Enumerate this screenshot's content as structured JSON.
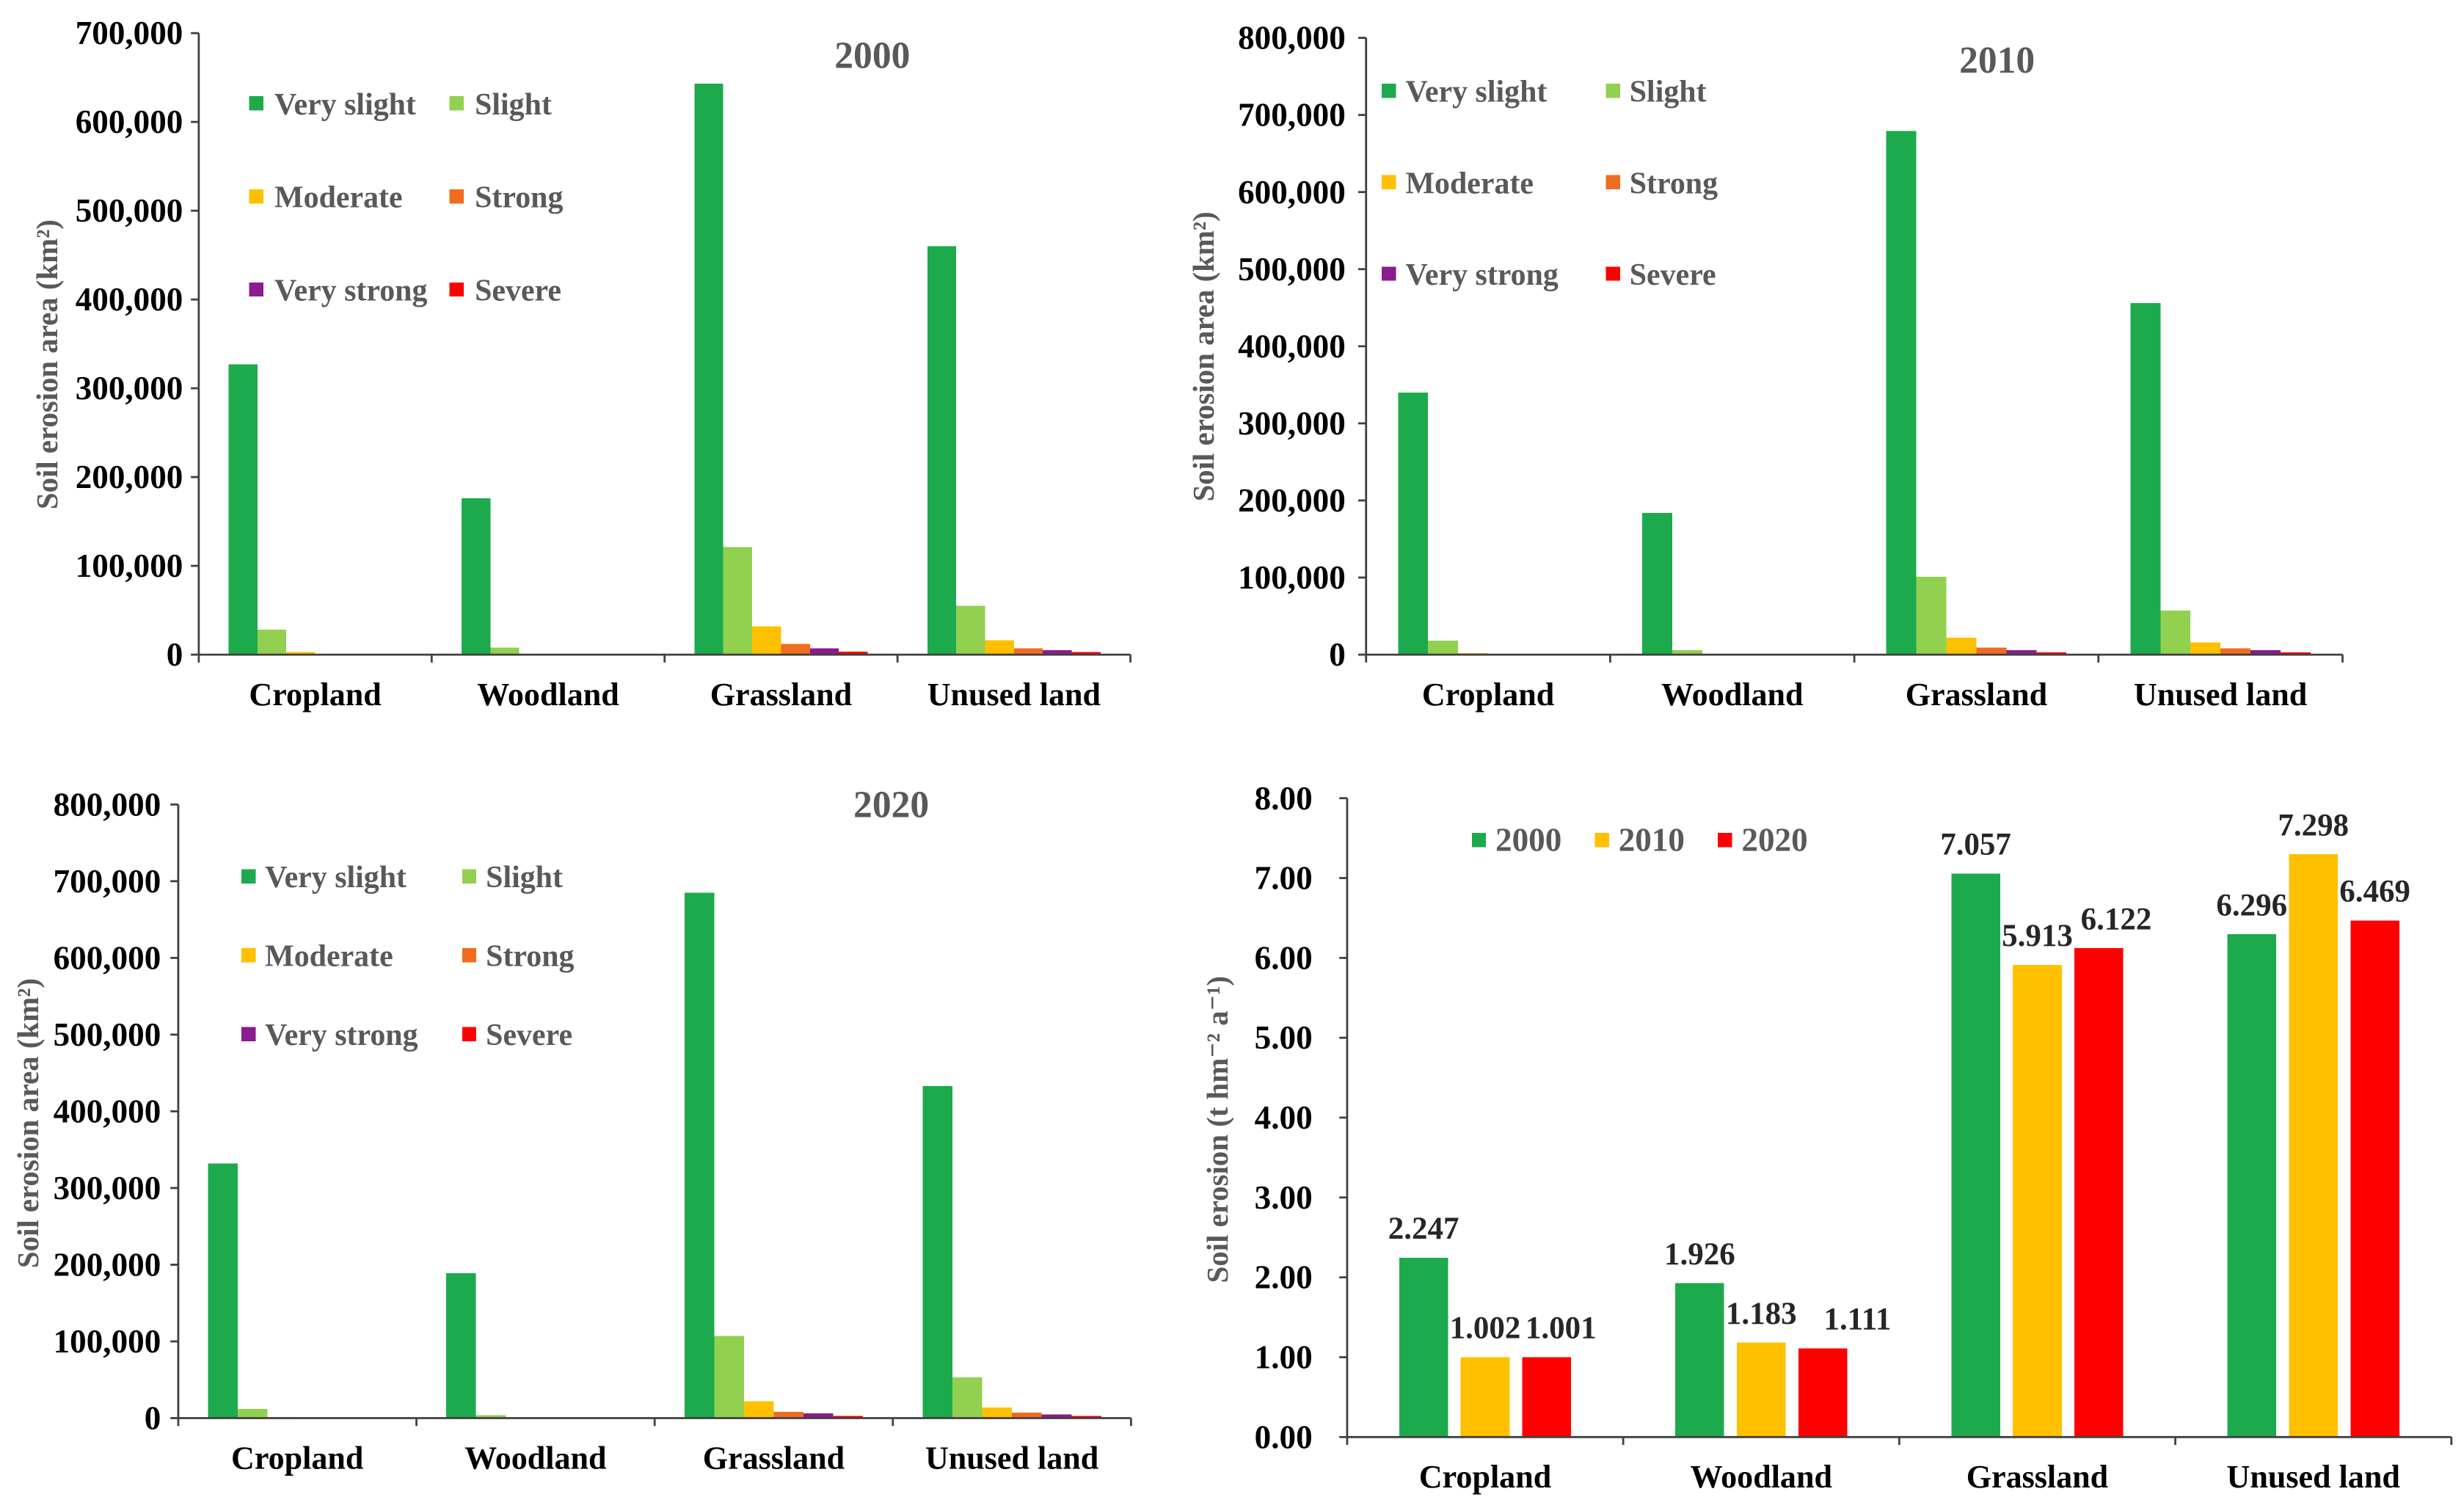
{
  "chart_data": [
    {
      "type": "bar",
      "title": "2000",
      "xlabel": "",
      "ylabel": "Soil erosion area (km²)",
      "categories": [
        "Cropland",
        "Woodland",
        "Grassland",
        "Unused land"
      ],
      "ylim": [
        0,
        700000
      ],
      "ytick_labels": [
        "0",
        "100,000",
        "200,000",
        "300,000",
        "400,000",
        "500,000",
        "600,000",
        "700,000"
      ],
      "grid": false,
      "legend_position": "top-left",
      "series": [
        {
          "name": "Very slight",
          "color": "#1daa4c",
          "values": [
            327000,
            176000,
            643000,
            460000
          ]
        },
        {
          "name": "Slight",
          "color": "#92d050",
          "values": [
            28000,
            8000,
            121000,
            55000
          ]
        },
        {
          "name": "Moderate",
          "color": "#ffc000",
          "values": [
            3000,
            1000,
            32000,
            16000
          ]
        },
        {
          "name": "Strong",
          "color": "#f06c1e",
          "values": [
            600,
            200,
            12000,
            7000
          ]
        },
        {
          "name": "Very strong",
          "color": "#8b1b8e",
          "values": [
            300,
            100,
            7000,
            5000
          ]
        },
        {
          "name": "Severe",
          "color": "#ff0000",
          "values": [
            100,
            50,
            3500,
            3000
          ]
        }
      ]
    },
    {
      "type": "bar",
      "title": "2010",
      "xlabel": "",
      "ylabel": "Soil erosion area (km²)",
      "categories": [
        "Cropland",
        "Woodland",
        "Grassland",
        "Unused land"
      ],
      "ylim": [
        0,
        800000
      ],
      "ytick_labels": [
        "0",
        "100,000",
        "200,000",
        "300,000",
        "400,000",
        "500,000",
        "600,000",
        "700,000",
        "800,000"
      ],
      "grid": false,
      "legend_position": "top-left",
      "series": [
        {
          "name": "Very slight",
          "color": "#1daa4c",
          "values": [
            340000,
            184000,
            679000,
            456000
          ]
        },
        {
          "name": "Slight",
          "color": "#92d050",
          "values": [
            18000,
            6000,
            101000,
            57000
          ]
        },
        {
          "name": "Moderate",
          "color": "#ffc000",
          "values": [
            2000,
            500,
            22000,
            16000
          ]
        },
        {
          "name": "Strong",
          "color": "#f06c1e",
          "values": [
            400,
            100,
            9000,
            8000
          ]
        },
        {
          "name": "Very strong",
          "color": "#8b1b8e",
          "values": [
            200,
            50,
            6000,
            6000
          ]
        },
        {
          "name": "Severe",
          "color": "#ff0000",
          "values": [
            100,
            30,
            3000,
            3000
          ]
        }
      ]
    },
    {
      "type": "bar",
      "title": "2020",
      "xlabel": "",
      "ylabel": "Soil erosion area (km²)",
      "categories": [
        "Cropland",
        "Woodland",
        "Grassland",
        "Unused land"
      ],
      "ylim": [
        0,
        800000
      ],
      "ytick_labels": [
        "0",
        "100,000",
        "200,000",
        "300,000",
        "400,000",
        "500,000",
        "600,000",
        "700,000",
        "800,000"
      ],
      "grid": false,
      "legend_position": "top-left",
      "series": [
        {
          "name": "Very slight",
          "color": "#1daa4c",
          "values": [
            332000,
            189000,
            685000,
            433000
          ]
        },
        {
          "name": "Slight",
          "color": "#92d050",
          "values": [
            12000,
            4000,
            107000,
            53000
          ]
        },
        {
          "name": "Moderate",
          "color": "#ffc000",
          "values": [
            1500,
            1000,
            22000,
            14000
          ]
        },
        {
          "name": "Strong",
          "color": "#f06c1e",
          "values": [
            1000,
            700,
            8000,
            7000
          ]
        },
        {
          "name": "Very strong",
          "color": "#8b1b8e",
          "values": [
            800,
            600,
            6000,
            5000
          ]
        },
        {
          "name": "Severe",
          "color": "#ff0000",
          "values": [
            600,
            500,
            3000,
            3000
          ]
        }
      ]
    },
    {
      "type": "bar",
      "title": "",
      "xlabel": "",
      "ylabel": "Soil erosion (t hm⁻² a⁻¹)",
      "categories": [
        "Cropland",
        "Woodland",
        "Grassland",
        "Unused land"
      ],
      "ylim": [
        0,
        8
      ],
      "ytick_labels": [
        "0.00",
        "1.00",
        "2.00",
        "3.00",
        "4.00",
        "5.00",
        "6.00",
        "7.00",
        "8.00"
      ],
      "grid": false,
      "legend_position": "top-left",
      "show_values": true,
      "series": [
        {
          "name": "2000",
          "color": "#1daa4c",
          "values": [
            2.247,
            1.926,
            7.057,
            6.296
          ]
        },
        {
          "name": "2010",
          "color": "#ffc000",
          "values": [
            1.002,
            1.183,
            5.913,
            7.298
          ]
        },
        {
          "name": "2020",
          "color": "#ff0000",
          "values": [
            1.001,
            1.111,
            6.122,
            6.469
          ]
        }
      ]
    }
  ]
}
